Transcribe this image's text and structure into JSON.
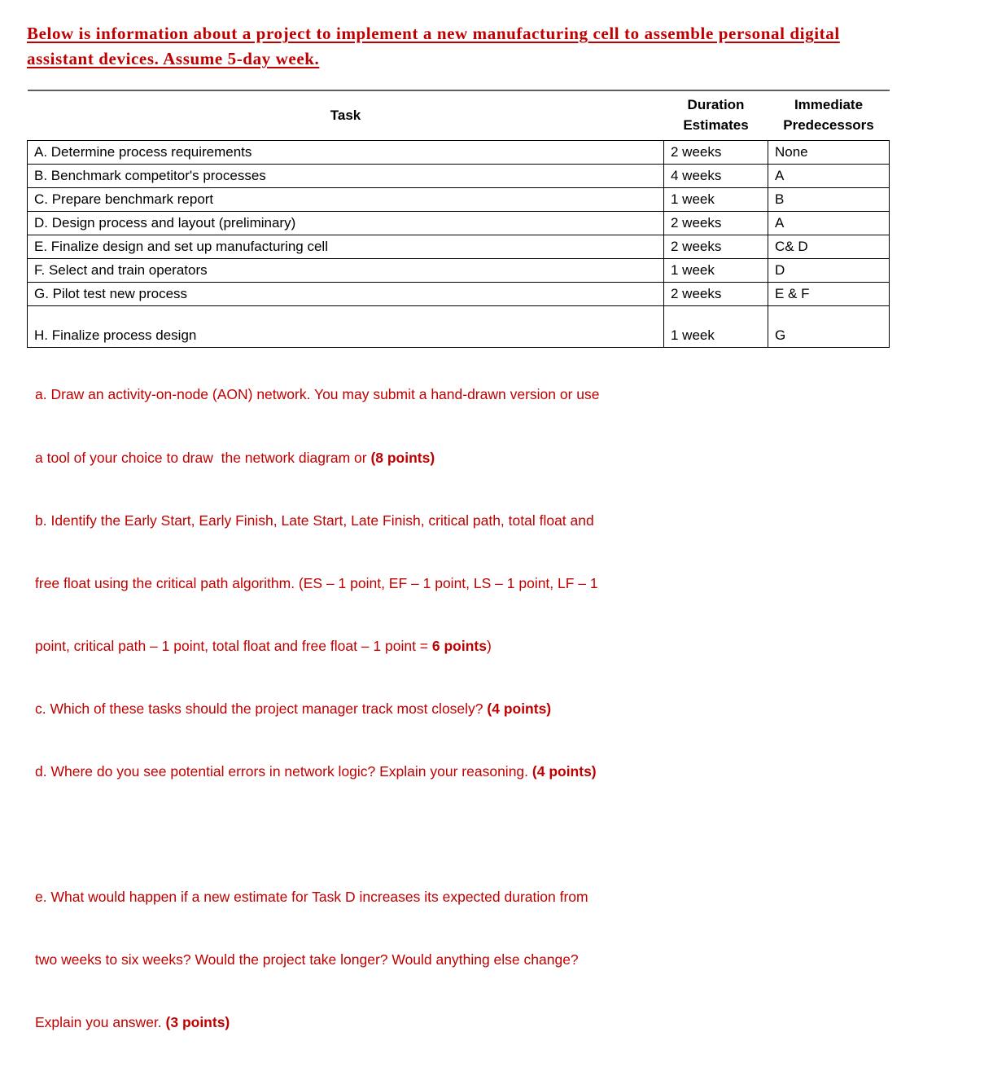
{
  "colors": {
    "accent_red": "#C00000",
    "table_border": "#000000",
    "top_rule_gray": "#5F5F5F",
    "background": "#FFFFFF"
  },
  "header": {
    "title_line1": "Below is information about a project to implement a new manufacturing cell to assemble personal digital",
    "title_line2": "assistant devices. Assume 5-day week."
  },
  "table": {
    "header": {
      "task": "Task",
      "duration_line1": "Duration",
      "duration_line2": "Estimates",
      "predecessors_line1": "Immediate",
      "predecessors_line2": "Predecessors"
    },
    "rows": [
      {
        "task": "A. Determine process requirements",
        "duration": "2 weeks",
        "predecessors": "None"
      },
      {
        "task": "B. Benchmark competitor's processes",
        "duration": "4 weeks",
        "predecessors": "A"
      },
      {
        "task": "C. Prepare benchmark report",
        "duration": "1 week",
        "predecessors": "B"
      },
      {
        "task": "D. Design process and layout (preliminary)",
        "duration": "2 weeks",
        "predecessors": "A"
      },
      {
        "task": "E. Finalize design and set up manufacturing cell",
        "duration": "2 weeks",
        "predecessors": "C& D"
      },
      {
        "task": "F. Select and train operators",
        "duration": "1 week",
        "predecessors": "D"
      },
      {
        "task": "G. Pilot test new process",
        "duration": "2 weeks",
        "predecessors": "E & F"
      },
      {
        "task": "H. Finalize process design",
        "duration": "1 week",
        "predecessors": "G"
      }
    ]
  },
  "questions": {
    "lines": [
      {
        "pre": "a. Draw an activity-on-node (AON) network. You may submit a hand-drawn version or use",
        "bold": "",
        "post": ""
      },
      {
        "pre": "a tool of your choice to draw  the network diagram or ",
        "bold": "(8 points)",
        "post": ""
      },
      {
        "pre": "b. Identify the Early Start, Early Finish, Late Start, Late Finish, critical path, total float and",
        "bold": "",
        "post": ""
      },
      {
        "pre": "free float using the critical path algorithm. (ES – 1 point, EF – 1 point, LS – 1 point, LF – 1",
        "bold": "",
        "post": ""
      },
      {
        "pre": "point, critical path – 1 point, total float and free float – 1 point = ",
        "bold": "6 points",
        "post": ")"
      },
      {
        "pre": "c. Which of these tasks should the project manager track most closely? ",
        "bold": "(4 points)",
        "post": ""
      },
      {
        "pre": "d. Where do you see potential errors in network logic? Explain your reasoning. ",
        "bold": "(4 points)",
        "post": ""
      },
      {
        "pre": "",
        "bold": "",
        "post": ""
      },
      {
        "pre": "e. What would happen if a new estimate for Task D increases its expected duration from",
        "bold": "",
        "post": ""
      },
      {
        "pre": "two weeks to six weeks? Would the project take longer? Would anything else change?",
        "bold": "",
        "post": ""
      },
      {
        "pre": "Explain you answer. ",
        "bold": "(3 points)",
        "post": ""
      }
    ]
  }
}
